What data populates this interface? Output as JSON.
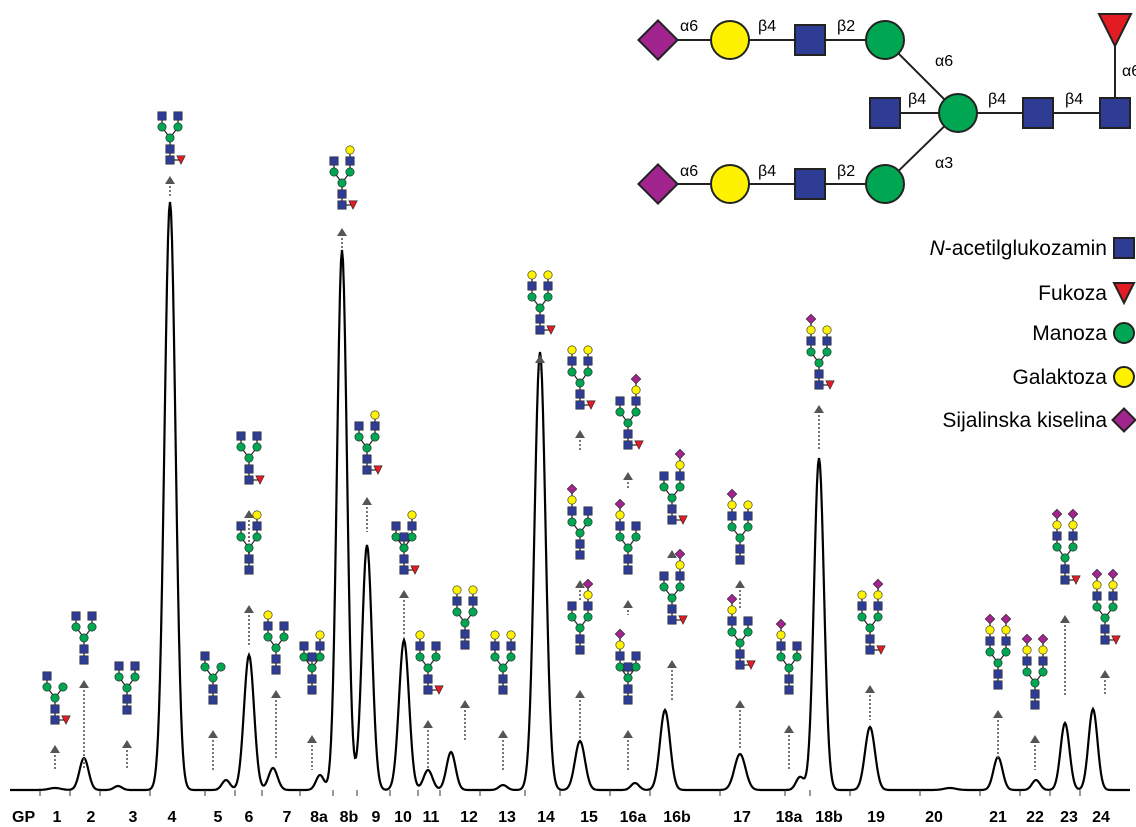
{
  "structure": {
    "linkages": {
      "top_a6": "α6",
      "top_b4": "β4",
      "top_b2": "β2",
      "top_arm_a6": "α6",
      "core_b4_left": "β4",
      "core_b4_mid": "β4",
      "core_b4_right": "β4",
      "bot_arm_a3": "α3",
      "bot_a6": "α6",
      "bot_b4": "β4",
      "bot_b2": "β2",
      "fuc_a6": "α6"
    }
  },
  "legend": {
    "items": [
      {
        "label_parts": [
          "N",
          "-acetilglukozamin"
        ],
        "symbol": "square",
        "color": "#2E3D93"
      },
      {
        "label_parts": [
          "",
          "Fukoza"
        ],
        "symbol": "triangle",
        "color": "#E31B23"
      },
      {
        "label_parts": [
          "",
          "Manoza"
        ],
        "symbol": "circle",
        "color": "#00A651"
      },
      {
        "label_parts": [
          "",
          "Galaktoza"
        ],
        "symbol": "circle",
        "color": "#FFF200"
      },
      {
        "label_parts": [
          "",
          "Sijalinska kiselina"
        ],
        "symbol": "diamond",
        "color": "#A2248F"
      }
    ]
  },
  "chromatogram": {
    "axis_prefix": "GP",
    "peaks": [
      "1",
      "2",
      "3",
      "4",
      "5",
      "6",
      "7",
      "8a",
      "8b",
      "9",
      "10",
      "11",
      "12",
      "13",
      "14",
      "15",
      "16a",
      "16b",
      "17",
      "18a",
      "18b",
      "19",
      "20",
      "21",
      "22",
      "23",
      "24"
    ]
  },
  "colors": {
    "glcnac": "#2E3D93",
    "fucose": "#E31B23",
    "mannose": "#00A651",
    "galactose": "#FFF200",
    "sialic": "#A2248F",
    "trace": "#000000",
    "arrow": "#555555"
  }
}
